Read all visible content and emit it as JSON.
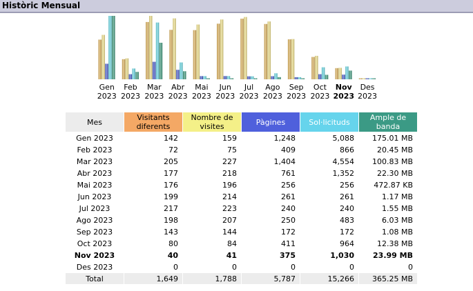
{
  "header": {
    "title": "Històric Mensual"
  },
  "colors": {
    "visitors": "#d6a84c",
    "visits": "#e9d87c",
    "pages": "#3b4fc4",
    "hits": "#5bd0dd",
    "bandwidth": "#2e8f70"
  },
  "table": {
    "headers": {
      "month": "Mes",
      "visitors": "Visitants diferents",
      "visits": "Nombre de visites",
      "pages": "Pàgines",
      "hits": "Sol·licituds",
      "bandwidth": "Ample de banda"
    },
    "rows": [
      {
        "month": "Gen 2023",
        "visitors": "142",
        "visits": "159",
        "pages": "1,248",
        "hits": "5,088",
        "bandwidth": "175.01 MB"
      },
      {
        "month": "Feb 2023",
        "visitors": "72",
        "visits": "75",
        "pages": "409",
        "hits": "866",
        "bandwidth": "20.45 MB"
      },
      {
        "month": "Mar 2023",
        "visitors": "205",
        "visits": "227",
        "pages": "1,404",
        "hits": "4,554",
        "bandwidth": "100.83 MB"
      },
      {
        "month": "Abr 2023",
        "visitors": "177",
        "visits": "218",
        "pages": "761",
        "hits": "1,352",
        "bandwidth": "22.30 MB"
      },
      {
        "month": "Mai 2023",
        "visitors": "176",
        "visits": "196",
        "pages": "256",
        "hits": "256",
        "bandwidth": "472.87 KB"
      },
      {
        "month": "Jun 2023",
        "visitors": "199",
        "visits": "214",
        "pages": "261",
        "hits": "261",
        "bandwidth": "1.17 MB"
      },
      {
        "month": "Jul 2023",
        "visitors": "217",
        "visits": "223",
        "pages": "240",
        "hits": "240",
        "bandwidth": "1.55 MB"
      },
      {
        "month": "Ago 2023",
        "visitors": "198",
        "visits": "207",
        "pages": "250",
        "hits": "483",
        "bandwidth": "6.03 MB"
      },
      {
        "month": "Sep 2023",
        "visitors": "143",
        "visits": "144",
        "pages": "172",
        "hits": "172",
        "bandwidth": "1.08 MB"
      },
      {
        "month": "Oct 2023",
        "visitors": "80",
        "visits": "84",
        "pages": "411",
        "hits": "964",
        "bandwidth": "12.38 MB"
      },
      {
        "month": "Nov 2023",
        "visitors": "40",
        "visits": "41",
        "pages": "375",
        "hits": "1,030",
        "bandwidth": "23.99 MB",
        "bold": true
      },
      {
        "month": "Des 2023",
        "visitors": "0",
        "visits": "0",
        "pages": "0",
        "hits": "0",
        "bandwidth": "0"
      }
    ],
    "total": {
      "month": "Total",
      "visitors": "1,649",
      "visits": "1,788",
      "pages": "5,787",
      "hits": "15,266",
      "bandwidth": "365.25 MB"
    }
  },
  "chart_data": {
    "type": "bar",
    "categories": [
      "Gen 2023",
      "Feb 2023",
      "Mar 2023",
      "Abr 2023",
      "Mai 2023",
      "Jun 2023",
      "Jul 2023",
      "Ago 2023",
      "Sep 2023",
      "Oct 2023",
      "Nov 2023",
      "Des 2023"
    ],
    "tick_labels": [
      {
        "month": "Gen",
        "year": "2023"
      },
      {
        "month": "Feb",
        "year": "2023"
      },
      {
        "month": "Mar",
        "year": "2023"
      },
      {
        "month": "Abr",
        "year": "2023"
      },
      {
        "month": "Mai",
        "year": "2023"
      },
      {
        "month": "Jun",
        "year": "2023"
      },
      {
        "month": "Jul",
        "year": "2023"
      },
      {
        "month": "Ago",
        "year": "2023"
      },
      {
        "month": "Sep",
        "year": "2023"
      },
      {
        "month": "Oct",
        "year": "2023"
      },
      {
        "month": "Nov",
        "year": "2023",
        "bold": true
      },
      {
        "month": "Des",
        "year": "2023"
      }
    ],
    "series": [
      {
        "name": "Visitants diferents",
        "key": "visitors",
        "values": [
          142,
          72,
          205,
          177,
          176,
          199,
          217,
          198,
          143,
          80,
          40,
          0
        ]
      },
      {
        "name": "Nombre de visites",
        "key": "visits",
        "values": [
          159,
          75,
          227,
          218,
          196,
          214,
          223,
          207,
          144,
          84,
          41,
          0
        ]
      },
      {
        "name": "Pàgines",
        "key": "pages",
        "values": [
          1248,
          409,
          1404,
          761,
          256,
          261,
          240,
          250,
          172,
          411,
          375,
          0
        ]
      },
      {
        "name": "Sol·licituds",
        "key": "hits",
        "values": [
          5088,
          866,
          4554,
          1352,
          256,
          261,
          240,
          483,
          172,
          964,
          1030,
          0
        ]
      },
      {
        "name": "Ample de banda",
        "key": "bandwidth",
        "unit": "MB",
        "values": [
          175.01,
          20.45,
          100.83,
          22.3,
          0.46,
          1.17,
          1.55,
          6.03,
          1.08,
          12.38,
          23.99,
          0
        ]
      }
    ],
    "scale_groups": [
      [
        "visitors",
        "visits"
      ],
      [
        "pages",
        "hits"
      ],
      [
        "bandwidth"
      ]
    ],
    "grid": false,
    "legend": "none"
  }
}
